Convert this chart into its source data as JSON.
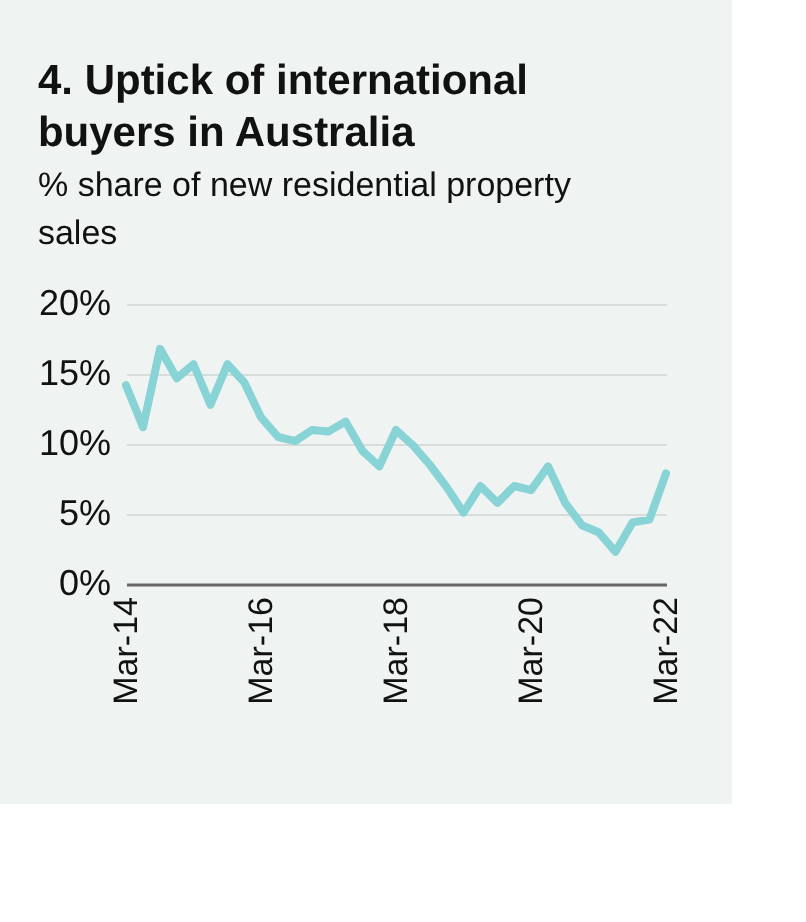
{
  "chart_data": {
    "type": "line",
    "title": "4. Uptick of international buyers in Australia",
    "ylabel": "% share of new residential property sales",
    "x": [
      "2014-03",
      "2014-06",
      "2014-09",
      "2014-12",
      "2015-03",
      "2015-06",
      "2015-09",
      "2015-12",
      "2016-03",
      "2016-06",
      "2016-09",
      "2016-12",
      "2017-03",
      "2017-06",
      "2017-09",
      "2017-12",
      "2018-03",
      "2018-06",
      "2018-09",
      "2018-12",
      "2019-03",
      "2019-06",
      "2019-09",
      "2019-12",
      "2020-03",
      "2020-06",
      "2020-09",
      "2020-12",
      "2021-03",
      "2021-06",
      "2021-09",
      "2021-12",
      "2022-03"
    ],
    "series": [
      {
        "color": "#88d3d6",
        "values": [
          14.2,
          11.2,
          16.8,
          14.7,
          15.7,
          12.8,
          15.7,
          14.4,
          11.9,
          10.5,
          10.2,
          11.0,
          10.9,
          11.6,
          9.5,
          8.4,
          11.0,
          9.9,
          8.5,
          6.9,
          5.1,
          7.0,
          5.8,
          7.0,
          6.7,
          8.4,
          5.8,
          4.2,
          3.7,
          2.3,
          4.4,
          4.6,
          7.9
        ]
      }
    ],
    "xlim": [
      "2014-03",
      "2022-03"
    ],
    "xticks": [
      {
        "value": "2014-03",
        "label": "Mar-14"
      },
      {
        "value": "2016-03",
        "label": "Mar-16"
      },
      {
        "value": "2018-03",
        "label": "Mar-18"
      },
      {
        "value": "2020-03",
        "label": "Mar-20"
      },
      {
        "value": "2022-03",
        "label": "Mar-22"
      }
    ],
    "ylim": [
      0,
      20
    ],
    "yticks": [
      {
        "value": 0,
        "label": "0%"
      },
      {
        "value": 5,
        "label": "5%"
      },
      {
        "value": 10,
        "label": "10%"
      },
      {
        "value": 15,
        "label": "15%"
      },
      {
        "value": 20,
        "label": "20%"
      }
    ],
    "grid": "y",
    "marker": "none",
    "line_style": "solid"
  }
}
